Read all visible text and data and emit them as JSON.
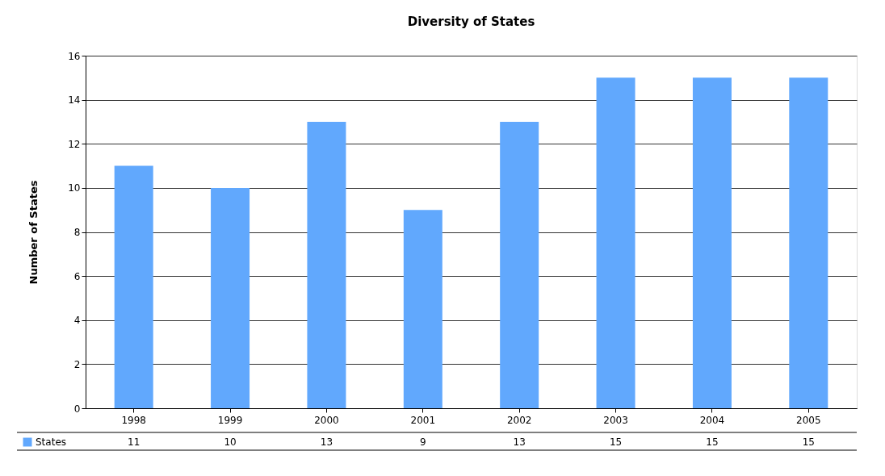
{
  "chart_data": {
    "type": "bar",
    "title": "Diversity of States",
    "ylabel": "Number of States",
    "categories": [
      "1998",
      "1999",
      "2000",
      "2001",
      "2002",
      "2003",
      "2004",
      "2005"
    ],
    "series": [
      {
        "name": "States",
        "color": "#61a8fd",
        "values": [
          11,
          10,
          13,
          9,
          13,
          15,
          15,
          15
        ]
      }
    ],
    "ylim": [
      0,
      16
    ],
    "yticks": [
      0,
      2,
      4,
      6,
      8,
      10,
      12,
      14,
      16
    ],
    "grid": "y",
    "legend": "bottom left",
    "data_labels": true
  }
}
